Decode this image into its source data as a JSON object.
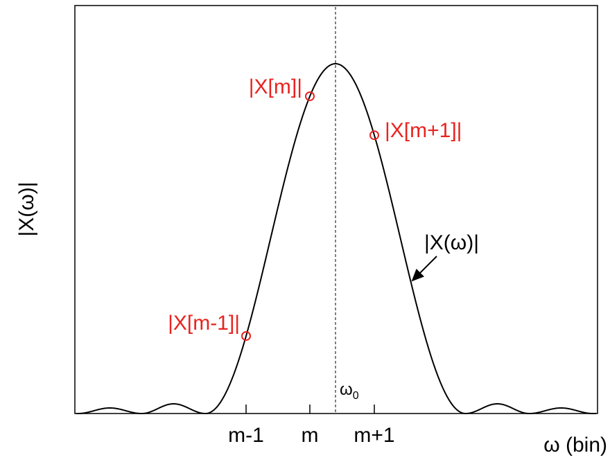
{
  "y_axis_label": "|X(ω)|",
  "x_axis_label": "ω (bin)",
  "x_ticks": [
    "m-1",
    "m",
    "m+1"
  ],
  "center_label": {
    "base": "ω",
    "subscript": "0"
  },
  "curve_label": "|X(ω)|",
  "sample_labels": [
    "|X[m-1]|",
    "|X[m]|",
    "|X[m+1]|"
  ]
}
